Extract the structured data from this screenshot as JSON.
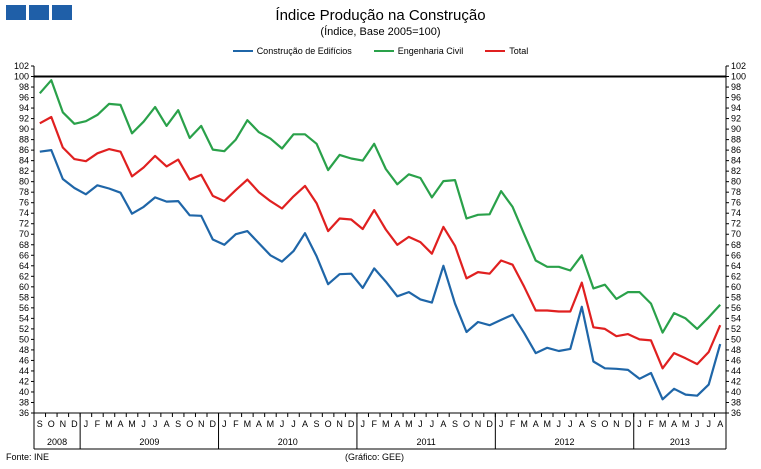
{
  "page": {
    "title": "Índice Produção na Construção",
    "subtitle": "(Índice, Base 2005=100)",
    "source": "Fonte: INE",
    "credit": "(Gráfico: GEE)"
  },
  "chart_data": {
    "type": "line",
    "title": "Índice Produção na Construção",
    "subtitle": "(Índice, Base 2005=100)",
    "ylim": [
      36,
      102
    ],
    "ytick_step": 2,
    "reference_line": 100,
    "grid": false,
    "legend_position": "top",
    "month_labels": [
      "S",
      "O",
      "N",
      "D",
      "J",
      "F",
      "M",
      "A",
      "M",
      "J",
      "J",
      "A",
      "S",
      "O",
      "N",
      "D",
      "J",
      "F",
      "M",
      "A",
      "M",
      "J",
      "J",
      "A",
      "S",
      "O",
      "N",
      "D",
      "J",
      "F",
      "M",
      "A",
      "M",
      "J",
      "J",
      "A",
      "S",
      "O",
      "N",
      "D",
      "J",
      "F",
      "M",
      "A",
      "M",
      "J",
      "J",
      "A",
      "S",
      "O",
      "N",
      "D",
      "J",
      "F",
      "M",
      "A",
      "M",
      "J",
      "J",
      "A"
    ],
    "year_labels": [
      {
        "label": "2008",
        "start": 0,
        "end": 3
      },
      {
        "label": "2009",
        "start": 4,
        "end": 15
      },
      {
        "label": "2010",
        "start": 16,
        "end": 27
      },
      {
        "label": "2011",
        "start": 28,
        "end": 39
      },
      {
        "label": "2012",
        "start": 40,
        "end": 51
      },
      {
        "label": "2013",
        "start": 52,
        "end": 59
      }
    ],
    "series": [
      {
        "name": "Construção de Edifícios",
        "color": "#1f66a8",
        "values": [
          85.7,
          86.0,
          80.5,
          78.8,
          77.6,
          79.3,
          78.7,
          77.9,
          73.9,
          75.2,
          77.0,
          76.2,
          76.3,
          73.6,
          73.5,
          69.0,
          68.0,
          70.0,
          70.6,
          68.3,
          66.0,
          64.8,
          66.8,
          70.2,
          65.8,
          60.5,
          62.4,
          62.5,
          59.8,
          63.5,
          61.0,
          58.2,
          59.0,
          57.6,
          57.0,
          64.0,
          56.8,
          51.4,
          53.3,
          52.7,
          53.7,
          54.7,
          51.2,
          47.4,
          48.4,
          47.8,
          48.2,
          56.2,
          45.8,
          44.5,
          44.4,
          44.2,
          42.5,
          43.6,
          38.6,
          40.6,
          39.5,
          39.3,
          41.4,
          49.1
        ]
      },
      {
        "name": "Engenharia Civil",
        "color": "#2aa14a",
        "values": [
          96.8,
          99.3,
          93.2,
          91.0,
          91.5,
          92.7,
          94.8,
          94.6,
          89.2,
          91.4,
          94.2,
          90.6,
          93.6,
          88.3,
          90.6,
          86.1,
          85.8,
          88.0,
          91.7,
          89.4,
          88.2,
          86.3,
          89.0,
          89.0,
          87.2,
          82.2,
          85.1,
          84.4,
          84.0,
          87.2,
          82.4,
          79.5,
          81.4,
          80.7,
          77.0,
          80.1,
          80.3,
          73.0,
          73.7,
          73.8,
          78.2,
          75.2,
          70.0,
          65.0,
          63.8,
          63.8,
          63.1,
          66.0,
          59.7,
          60.4,
          57.7,
          59.0,
          59.0,
          56.8,
          51.3,
          55.0,
          54.0,
          52.0,
          54.2,
          56.6
        ]
      },
      {
        "name": "Total",
        "color": "#e02020",
        "values": [
          91.1,
          92.3,
          86.5,
          84.3,
          83.9,
          85.4,
          86.2,
          85.7,
          81.0,
          82.7,
          84.9,
          82.9,
          84.2,
          80.4,
          81.3,
          77.3,
          76.3,
          78.4,
          80.4,
          78.0,
          76.3,
          74.9,
          77.2,
          79.2,
          75.9,
          70.6,
          73.0,
          72.8,
          71.0,
          74.6,
          70.9,
          68.0,
          69.5,
          68.5,
          66.3,
          71.4,
          67.8,
          61.6,
          62.8,
          62.5,
          65.0,
          64.2,
          60.0,
          55.5,
          55.5,
          55.3,
          55.3,
          60.8,
          52.3,
          52.0,
          50.6,
          51.0,
          50.0,
          49.8,
          44.5,
          47.4,
          46.4,
          45.3,
          47.6,
          52.7
        ]
      }
    ]
  }
}
